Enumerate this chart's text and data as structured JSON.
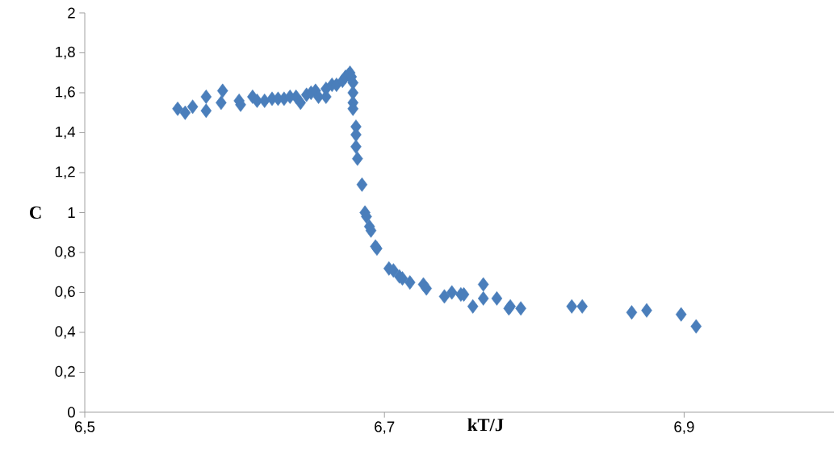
{
  "chart_data": {
    "type": "scatter",
    "xlabel": "kT/J",
    "ylabel": "C",
    "marker": "diamond",
    "grid": false,
    "xlim": [
      6.5,
      7.0
    ],
    "ylim": [
      0,
      2
    ],
    "xticks": [
      {
        "value": 6.5,
        "label": "6,5"
      },
      {
        "value": 6.7,
        "label": "6,7"
      },
      {
        "value": 6.9,
        "label": "6,9"
      }
    ],
    "yticks": [
      0,
      {
        "value": 0.2,
        "label": "0,2"
      },
      {
        "value": 0.4,
        "label": "0,4"
      },
      {
        "value": 0.6,
        "label": "0,6"
      },
      {
        "value": 0.8,
        "label": "0,8"
      },
      1,
      {
        "value": 1.2,
        "label": "1,2"
      },
      {
        "value": 1.4,
        "label": "1,4"
      },
      {
        "value": 1.6,
        "label": "1,6"
      },
      {
        "value": 1.8,
        "label": "1,8"
      },
      2
    ],
    "series": [
      {
        "color": "#4a7ebb",
        "x": [
          6.562,
          6.567,
          6.572,
          6.581,
          6.581,
          6.591,
          6.592,
          6.603,
          6.604,
          6.612,
          6.615,
          6.62,
          6.625,
          6.629,
          6.633,
          6.637,
          6.641,
          6.644,
          6.648,
          6.651,
          6.654,
          6.656,
          6.661,
          6.661,
          6.665,
          6.668,
          6.672,
          6.674,
          6.676,
          6.677,
          6.678,
          6.679,
          6.679,
          6.679,
          6.679,
          6.681,
          6.681,
          6.681,
          6.682,
          6.685,
          6.687,
          6.688,
          6.69,
          6.691,
          6.694,
          6.695,
          6.703,
          6.706,
          6.71,
          6.712,
          6.717,
          6.726,
          6.728,
          6.74,
          6.745,
          6.751,
          6.753,
          6.759,
          6.766,
          6.766,
          6.775,
          6.783,
          6.784,
          6.791,
          6.825,
          6.832,
          6.865,
          6.875,
          6.898,
          6.908
        ],
        "values": [
          1.52,
          1.5,
          1.53,
          1.58,
          1.51,
          1.55,
          1.61,
          1.56,
          1.54,
          1.58,
          1.56,
          1.56,
          1.57,
          1.57,
          1.57,
          1.58,
          1.58,
          1.55,
          1.59,
          1.6,
          1.61,
          1.58,
          1.58,
          1.62,
          1.64,
          1.64,
          1.66,
          1.68,
          1.69,
          1.7,
          1.68,
          1.65,
          1.6,
          1.55,
          1.52,
          1.43,
          1.39,
          1.33,
          1.27,
          1.14,
          1.0,
          0.98,
          0.93,
          0.91,
          0.83,
          0.82,
          0.72,
          0.71,
          0.68,
          0.67,
          0.65,
          0.64,
          0.62,
          0.58,
          0.6,
          0.59,
          0.59,
          0.53,
          0.64,
          0.57,
          0.57,
          0.52,
          0.53,
          0.52,
          0.53,
          0.53,
          0.5,
          0.51,
          0.49,
          0.43
        ]
      }
    ]
  }
}
